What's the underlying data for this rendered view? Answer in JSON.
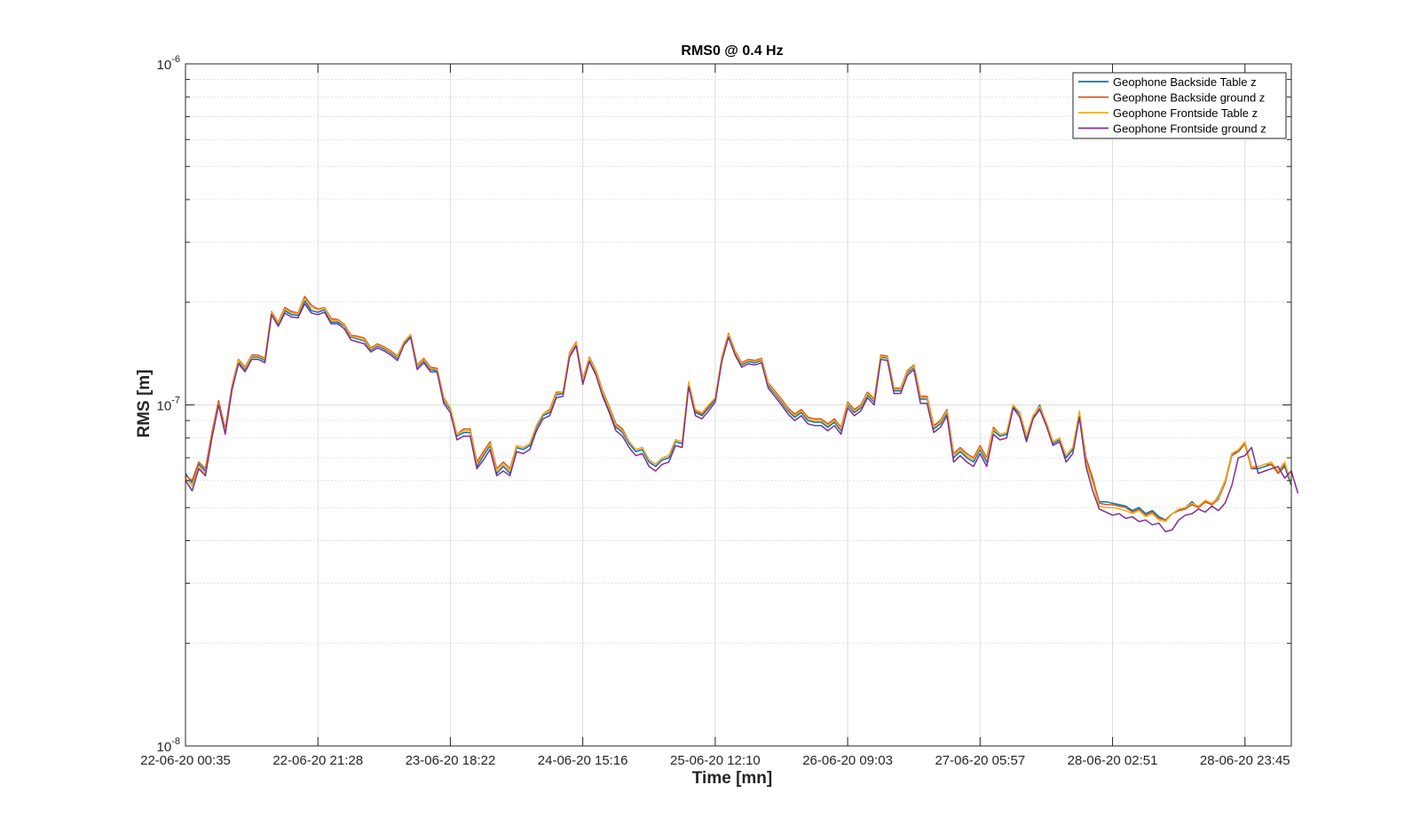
{
  "chart_data": {
    "type": "line",
    "title": "RMS0 @ 0.4 Hz",
    "xlabel": "Time [mn]",
    "ylabel": "RMS [m]",
    "yscale": "log",
    "ylim": [
      1e-08,
      1e-06
    ],
    "y_tick_values": [
      1e-08,
      1e-07,
      1e-06
    ],
    "y_tick_labels": [
      {
        "base": "10",
        "exp": "-8"
      },
      {
        "base": "10",
        "exp": "-7"
      },
      {
        "base": "10",
        "exp": "-6"
      }
    ],
    "x_tick_labels": [
      "22-06-20 00:35",
      "22-06-20 21:28",
      "23-06-20 18:22",
      "24-06-20 15:16",
      "25-06-20 12:10",
      "26-06-20 09:03",
      "27-06-20 05:57",
      "28-06-20 02:51",
      "28-06-20 23:45"
    ],
    "x_tick_index_step": 20,
    "grid": true,
    "minor_grid": true,
    "legend_position": "top-right",
    "series": [
      {
        "name": "Geophone Backside Table z",
        "color": "#0072BD",
        "values": [
          6.3e-08,
          5.9e-08,
          6.7e-08,
          6.4e-08,
          8.2e-08,
          1.02e-07,
          8.4e-08,
          1.12e-07,
          1.34e-07,
          1.27e-07,
          1.38e-07,
          1.38e-07,
          1.35e-07,
          1.85e-07,
          1.72e-07,
          1.89e-07,
          1.84e-07,
          1.83e-07,
          2.02e-07,
          1.89e-07,
          1.87e-07,
          1.9e-07,
          1.75e-07,
          1.75e-07,
          1.7e-07,
          1.58e-07,
          1.56e-07,
          1.54e-07,
          1.45e-07,
          1.49e-07,
          1.46e-07,
          1.42e-07,
          1.37e-07,
          1.52e-07,
          1.6e-07,
          1.29e-07,
          1.35e-07,
          1.27e-07,
          1.26e-07,
          1.03e-07,
          9.7e-08,
          8.1e-08,
          8.3e-08,
          8.3e-08,
          6.6e-08,
          7.1e-08,
          7.6e-08,
          6.3e-08,
          6.6e-08,
          6.3e-08,
          7.5e-08,
          7.4e-08,
          7.6e-08,
          8.6e-08,
          9.3e-08,
          9.5e-08,
          1.07e-07,
          1.08e-07,
          1.4e-07,
          1.51e-07,
          1.17e-07,
          1.36e-07,
          1.24e-07,
          1.08e-07,
          9.7e-08,
          8.6e-08,
          8.3e-08,
          7.7e-08,
          7.3e-08,
          7.4e-08,
          6.8e-08,
          6.6e-08,
          6.9e-08,
          7e-08,
          7.8e-08,
          7.7e-08,
          1.15e-07,
          9.5e-08,
          9.3e-08,
          9.8e-08,
          1.04e-07,
          1.36e-07,
          1.6e-07,
          1.42e-07,
          1.31e-07,
          1.34e-07,
          1.33e-07,
          1.35e-07,
          1.14e-07,
          1.08e-07,
          1.02e-07,
          9.6e-08,
          9.2e-08,
          9.5e-08,
          9e-08,
          8.9e-08,
          8.9e-08,
          8.6e-08,
          8.9e-08,
          8.4e-08,
          1e-07,
          9.5e-08,
          9.8e-08,
          1.07e-07,
          1.02e-07,
          1.38e-07,
          1.37e-07,
          1.1e-07,
          1.1e-07,
          1.24e-07,
          1.29e-07,
          1.04e-07,
          1.04e-07,
          8.5e-08,
          8.8e-08,
          9.5e-08,
          7e-08,
          7.3e-08,
          7e-08,
          6.8e-08,
          7.4e-08,
          6.8e-08,
          8.4e-08,
          8.1e-08,
          8.2e-08,
          9.9e-08,
          9.4e-08,
          8e-08,
          9.2e-08,
          1e-07,
          8.8e-08,
          7.7e-08,
          7.9e-08,
          7e-08,
          7.4e-08,
          9.4e-08,
          6.9e-08,
          6e-08,
          5.2e-08,
          5.2e-08,
          5.15e-08,
          5.1e-08,
          5.05e-08,
          4.9e-08,
          5e-08,
          4.8e-08,
          4.9e-08,
          4.7e-08,
          4.6e-08,
          4.8e-08,
          4.9e-08,
          5e-08,
          5.2e-08,
          5e-08,
          5.2e-08,
          5.1e-08,
          5.4e-08,
          6e-08,
          7.2e-08,
          7.3e-08,
          7.7e-08,
          6.5e-08,
          6.5e-08,
          6.6e-08,
          6.7e-08,
          6.3e-08,
          6.6e-08,
          5.8e-08
        ]
      },
      {
        "name": "Geophone Backside ground z",
        "color": "#D95319",
        "values": [
          6.2e-08,
          6e-08,
          6.8e-08,
          6.5e-08,
          8.3e-08,
          1.03e-07,
          8.5e-08,
          1.13e-07,
          1.36e-07,
          1.29e-07,
          1.4e-07,
          1.4e-07,
          1.37e-07,
          1.88e-07,
          1.75e-07,
          1.93e-07,
          1.88e-07,
          1.86e-07,
          2.08e-07,
          1.96e-07,
          1.91e-07,
          1.93e-07,
          1.79e-07,
          1.78e-07,
          1.72e-07,
          1.6e-07,
          1.59e-07,
          1.57e-07,
          1.47e-07,
          1.51e-07,
          1.48e-07,
          1.44e-07,
          1.39e-07,
          1.53e-07,
          1.61e-07,
          1.31e-07,
          1.37e-07,
          1.29e-07,
          1.28e-07,
          1.05e-07,
          9.8e-08,
          8.2e-08,
          8.5e-08,
          8.5e-08,
          6.8e-08,
          7.3e-08,
          7.8e-08,
          6.5e-08,
          6.8e-08,
          6.5e-08,
          7.6e-08,
          7.5e-08,
          7.7e-08,
          8.7e-08,
          9.4e-08,
          9.7e-08,
          1.09e-07,
          1.09e-07,
          1.42e-07,
          1.53e-07,
          1.19e-07,
          1.38e-07,
          1.26e-07,
          1.1e-07,
          9.9e-08,
          8.8e-08,
          8.5e-08,
          7.8e-08,
          7.4e-08,
          7.5e-08,
          6.9e-08,
          6.7e-08,
          7e-08,
          7.1e-08,
          7.9e-08,
          7.8e-08,
          1.16e-07,
          9.6e-08,
          9.4e-08,
          9.9e-08,
          1.05e-07,
          1.38e-07,
          1.62e-07,
          1.44e-07,
          1.33e-07,
          1.36e-07,
          1.35e-07,
          1.37e-07,
          1.16e-07,
          1.1e-07,
          1.04e-07,
          9.8e-08,
          9.4e-08,
          9.7e-08,
          9.2e-08,
          9.1e-08,
          9.1e-08,
          8.8e-08,
          9.1e-08,
          8.6e-08,
          1.02e-07,
          9.7e-08,
          1e-07,
          1.09e-07,
          1.04e-07,
          1.4e-07,
          1.39e-07,
          1.12e-07,
          1.12e-07,
          1.26e-07,
          1.31e-07,
          1.06e-07,
          1.06e-07,
          8.7e-08,
          9e-08,
          9.7e-08,
          7.2e-08,
          7.5e-08,
          7.2e-08,
          7e-08,
          7.6e-08,
          7e-08,
          8.6e-08,
          8.2e-08,
          8.3e-08,
          1e-07,
          9.5e-08,
          8.1e-08,
          9.3e-08,
          9.8e-08,
          8.9e-08,
          7.8e-08,
          8e-08,
          7.1e-08,
          7.5e-08,
          9.5e-08,
          7e-08,
          6.1e-08,
          5.15e-08,
          5.1e-08,
          5.1e-08,
          5.05e-08,
          5e-08,
          4.85e-08,
          4.95e-08,
          4.75e-08,
          4.85e-08,
          4.65e-08,
          4.6e-08,
          4.8e-08,
          4.9e-08,
          4.95e-08,
          5.1e-08,
          5e-08,
          5.2e-08,
          5.1e-08,
          5.3e-08,
          5.9e-08,
          7.1e-08,
          7.3e-08,
          7.7e-08,
          6.5e-08,
          6.6e-08,
          6.7e-08,
          6.7e-08,
          6.3e-08,
          6.7e-08,
          5.9e-08
        ]
      },
      {
        "name": "Geophone Frontside Table z",
        "color": "#EDB120",
        "values": [
          6.1e-08,
          5.8e-08,
          6.6e-08,
          6.3e-08,
          8.1e-08,
          1.01e-07,
          8.3e-08,
          1.11e-07,
          1.35e-07,
          1.28e-07,
          1.39e-07,
          1.39e-07,
          1.36e-07,
          1.87e-07,
          1.74e-07,
          1.91e-07,
          1.86e-07,
          1.85e-07,
          2.05e-07,
          1.93e-07,
          1.9e-07,
          1.92e-07,
          1.77e-07,
          1.77e-07,
          1.71e-07,
          1.59e-07,
          1.57e-07,
          1.55e-07,
          1.46e-07,
          1.5e-07,
          1.47e-07,
          1.43e-07,
          1.38e-07,
          1.53e-07,
          1.61e-07,
          1.3e-07,
          1.36e-07,
          1.28e-07,
          1.27e-07,
          1.04e-07,
          9.8e-08,
          8.2e-08,
          8.4e-08,
          8.4e-08,
          6.7e-08,
          7.2e-08,
          7.7e-08,
          6.4e-08,
          6.7e-08,
          6.4e-08,
          7.6e-08,
          7.5e-08,
          7.7e-08,
          8.7e-08,
          9.4e-08,
          9.6e-08,
          1.08e-07,
          1.09e-07,
          1.41e-07,
          1.52e-07,
          1.18e-07,
          1.37e-07,
          1.25e-07,
          1.09e-07,
          9.8e-08,
          8.7e-08,
          8.4e-08,
          7.8e-08,
          7.4e-08,
          7.5e-08,
          6.9e-08,
          6.7e-08,
          7e-08,
          7.1e-08,
          7.9e-08,
          7.8e-08,
          1.17e-07,
          9.7e-08,
          9.5e-08,
          1e-07,
          1.05e-07,
          1.37e-07,
          1.61e-07,
          1.43e-07,
          1.32e-07,
          1.35e-07,
          1.34e-07,
          1.36e-07,
          1.15e-07,
          1.09e-07,
          1.03e-07,
          9.7e-08,
          9.3e-08,
          9.6e-08,
          9.1e-08,
          9e-08,
          9e-08,
          8.7e-08,
          9e-08,
          8.5e-08,
          1.01e-07,
          9.6e-08,
          9.9e-08,
          1.08e-07,
          1.03e-07,
          1.39e-07,
          1.38e-07,
          1.11e-07,
          1.11e-07,
          1.25e-07,
          1.3e-07,
          1.05e-07,
          1.05e-07,
          8.6e-08,
          8.9e-08,
          9.6e-08,
          7.1e-08,
          7.4e-08,
          7.1e-08,
          6.9e-08,
          7.5e-08,
          6.9e-08,
          8.5e-08,
          8.2e-08,
          8.3e-08,
          1e-07,
          9.5e-08,
          8.1e-08,
          9.3e-08,
          9.9e-08,
          8.9e-08,
          7.8e-08,
          8e-08,
          7.1e-08,
          7.5e-08,
          9.6e-08,
          6.8e-08,
          5.9e-08,
          5.05e-08,
          5e-08,
          5e-08,
          4.95e-08,
          4.9e-08,
          4.8e-08,
          4.9e-08,
          4.7e-08,
          4.8e-08,
          4.6e-08,
          4.55e-08,
          4.8e-08,
          4.95e-08,
          5e-08,
          5.15e-08,
          5.05e-08,
          5.25e-08,
          5.15e-08,
          5.35e-08,
          6e-08,
          7.2e-08,
          7.4e-08,
          7.8e-08,
          6.6e-08,
          6.6e-08,
          6.7e-08,
          6.8e-08,
          6.4e-08,
          6.8e-08,
          5.9e-08
        ]
      },
      {
        "name": "Geophone Frontside ground z",
        "color": "#7E2F8E",
        "values": [
          6e-08,
          5.6e-08,
          6.5e-08,
          6.2e-08,
          8e-08,
          1e-07,
          8.2e-08,
          1.1e-07,
          1.32e-07,
          1.25e-07,
          1.36e-07,
          1.36e-07,
          1.33e-07,
          1.84e-07,
          1.7e-07,
          1.86e-07,
          1.81e-07,
          1.8e-07,
          1.98e-07,
          1.86e-07,
          1.84e-07,
          1.87e-07,
          1.73e-07,
          1.73e-07,
          1.67e-07,
          1.55e-07,
          1.53e-07,
          1.51e-07,
          1.43e-07,
          1.47e-07,
          1.44e-07,
          1.4e-07,
          1.35e-07,
          1.5e-07,
          1.58e-07,
          1.27e-07,
          1.33e-07,
          1.25e-07,
          1.25e-07,
          1.01e-07,
          9.5e-08,
          7.9e-08,
          8.1e-08,
          8.1e-08,
          6.5e-08,
          6.9e-08,
          7.4e-08,
          6.2e-08,
          6.4e-08,
          6.2e-08,
          7.3e-08,
          7.2e-08,
          7.4e-08,
          8.4e-08,
          9.1e-08,
          9.3e-08,
          1.05e-07,
          1.06e-07,
          1.38e-07,
          1.49e-07,
          1.15e-07,
          1.34e-07,
          1.22e-07,
          1.06e-07,
          9.5e-08,
          8.4e-08,
          8.1e-08,
          7.5e-08,
          7.1e-08,
          7.2e-08,
          6.6e-08,
          6.4e-08,
          6.7e-08,
          6.8e-08,
          7.6e-08,
          7.5e-08,
          1.13e-07,
          9.3e-08,
          9.1e-08,
          9.6e-08,
          1.02e-07,
          1.34e-07,
          1.58e-07,
          1.4e-07,
          1.29e-07,
          1.32e-07,
          1.31e-07,
          1.33e-07,
          1.12e-07,
          1.06e-07,
          1e-07,
          9.4e-08,
          9e-08,
          9.3e-08,
          8.8e-08,
          8.7e-08,
          8.7e-08,
          8.4e-08,
          8.7e-08,
          8.2e-08,
          9.8e-08,
          9.3e-08,
          9.6e-08,
          1.05e-07,
          1e-07,
          1.36e-07,
          1.35e-07,
          1.08e-07,
          1.08e-07,
          1.22e-07,
          1.27e-07,
          1.01e-07,
          1.01e-07,
          8.3e-08,
          8.6e-08,
          9.3e-08,
          6.8e-08,
          7.1e-08,
          6.8e-08,
          6.6e-08,
          7.2e-08,
          6.6e-08,
          8.2e-08,
          7.9e-08,
          8e-08,
          9.8e-08,
          9.2e-08,
          7.8e-08,
          9.1e-08,
          9.7e-08,
          8.7e-08,
          7.6e-08,
          7.8e-08,
          6.8e-08,
          7.2e-08,
          9.2e-08,
          6.6e-08,
          5.6e-08,
          4.95e-08,
          4.85e-08,
          4.75e-08,
          4.8e-08,
          4.65e-08,
          4.7e-08,
          4.55e-08,
          4.6e-08,
          4.45e-08,
          4.5e-08,
          4.25e-08,
          4.3e-08,
          4.6e-08,
          4.75e-08,
          4.8e-08,
          4.95e-08,
          4.85e-08,
          5.05e-08,
          4.9e-08,
          5.15e-08,
          5.8e-08,
          7e-08,
          7.1e-08,
          7.5e-08,
          6.3e-08,
          6.4e-08,
          6.5e-08,
          6.6e-08,
          6.1e-08,
          6.4e-08,
          5.5e-08
        ]
      }
    ]
  }
}
